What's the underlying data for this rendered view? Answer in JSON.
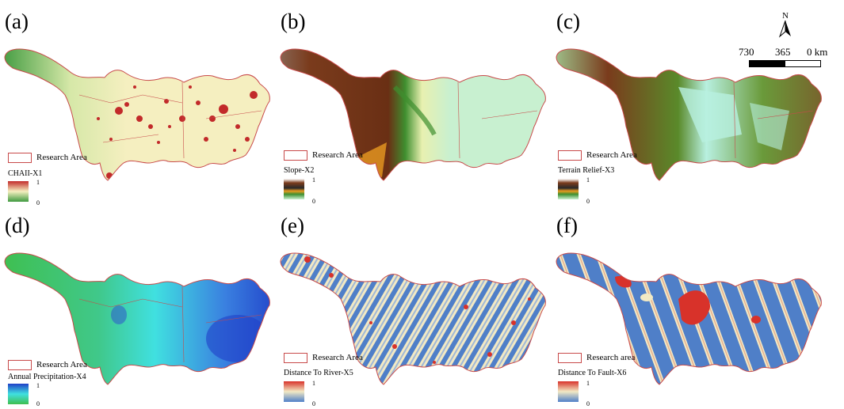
{
  "panels": [
    {
      "label": "(a)",
      "legend_area": "Research Area",
      "variable": "CHAII-X1",
      "max": "1",
      "min": "0"
    },
    {
      "label": "(b)",
      "legend_area": "Research Area",
      "variable": "Slope-X2",
      "max": "1",
      "min": "0"
    },
    {
      "label": "(c)",
      "legend_area": "Research Area",
      "variable": "Terrain Relief-X3",
      "max": "1",
      "min": "0"
    },
    {
      "label": "(d)",
      "legend_area": "Research Area",
      "variable": "Annual Precipitation-X4",
      "max": "1",
      "min": "0"
    },
    {
      "label": "(e)",
      "legend_area": "Research Area",
      "variable": "Distance To River-X5",
      "max": "1",
      "min": "0"
    },
    {
      "label": "(f)",
      "legend_area": "Research area",
      "variable": "Distance To Fault-X6",
      "max": "1",
      "min": "0"
    }
  ],
  "north_arrow": {
    "letter": "N"
  },
  "scale_bar": {
    "labels": [
      "730",
      "365",
      "0 km"
    ]
  },
  "colors": {
    "boundary": "#c84a4a",
    "chaii_low": "#3f9a3f",
    "chaii_mid": "#f5efc0",
    "chaii_high": "#c22a2a",
    "slope_brown": "#7a3b1c",
    "slope_green": "#3f8f2f",
    "slope_light": "#c8f0d0",
    "precip_green": "#3fbf4f",
    "precip_cyan": "#40e0e0",
    "precip_blue": "#2050d0",
    "river_blue": "#4f7fc8",
    "river_cream": "#f2e9c4",
    "river_red": "#d8322a"
  }
}
